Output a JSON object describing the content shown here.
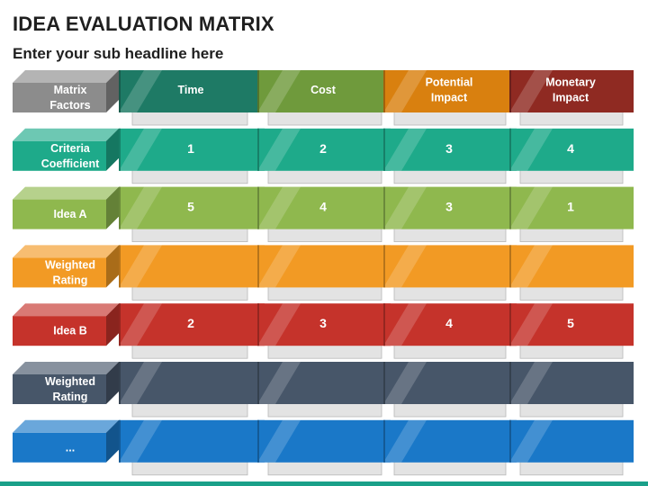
{
  "title": "IDEA EVALUATION MATRIX",
  "subtitle": "Enter your sub headline here",
  "columns": [
    {
      "label_lines": [
        "Time"
      ],
      "color": "#1e7a65"
    },
    {
      "label_lines": [
        "Cost"
      ],
      "color": "#6f9a3c"
    },
    {
      "label_lines": [
        "Potential",
        "Impact"
      ],
      "color": "#d9800f"
    },
    {
      "label_lines": [
        "Monetary",
        "Impact"
      ],
      "color": "#8f2a22"
    }
  ],
  "rows": [
    {
      "label_lines": [
        "Matrix",
        "Factors"
      ],
      "color": "#8c8c8c",
      "values": [
        "",
        "",
        "",
        ""
      ]
    },
    {
      "label_lines": [
        "Criteria",
        "Coefficient"
      ],
      "color": "#1eaa8a",
      "values": [
        "1",
        "2",
        "3",
        "4"
      ]
    },
    {
      "label_lines": [
        "Idea A"
      ],
      "color": "#8fb84e",
      "values": [
        "5",
        "4",
        "3",
        "1"
      ]
    },
    {
      "label_lines": [
        "Weighted",
        "Rating"
      ],
      "color": "#f29a24",
      "values": [
        "",
        "",
        "",
        ""
      ]
    },
    {
      "label_lines": [
        "Idea B"
      ],
      "color": "#c5332b",
      "values": [
        "2",
        "3",
        "4",
        "5"
      ]
    },
    {
      "label_lines": [
        "Weighted",
        "Rating"
      ],
      "color": "#475669",
      "values": [
        "",
        "",
        "",
        ""
      ]
    },
    {
      "label_lines": [
        "..."
      ],
      "color": "#1a78c8",
      "values": [
        "",
        "",
        "",
        ""
      ]
    }
  ]
}
